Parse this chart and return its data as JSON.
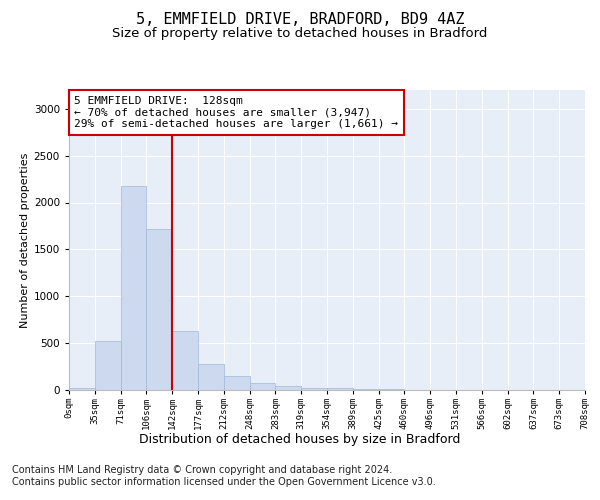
{
  "title1": "5, EMMFIELD DRIVE, BRADFORD, BD9 4AZ",
  "title2": "Size of property relative to detached houses in Bradford",
  "xlabel": "Distribution of detached houses by size in Bradford",
  "ylabel": "Number of detached properties",
  "footnote": "Contains HM Land Registry data © Crown copyright and database right 2024.\nContains public sector information licensed under the Open Government Licence v3.0.",
  "bin_labels": [
    "0sqm",
    "35sqm",
    "71sqm",
    "106sqm",
    "142sqm",
    "177sqm",
    "212sqm",
    "248sqm",
    "283sqm",
    "319sqm",
    "354sqm",
    "389sqm",
    "425sqm",
    "460sqm",
    "496sqm",
    "531sqm",
    "566sqm",
    "602sqm",
    "637sqm",
    "673sqm",
    "708sqm"
  ],
  "bar_values": [
    25,
    520,
    2180,
    1720,
    630,
    280,
    148,
    75,
    40,
    25,
    18,
    10,
    6,
    4,
    2,
    2,
    1,
    1,
    0,
    0
  ],
  "bar_color": "#cdd9ee",
  "bar_edge_color": "#a0b8d8",
  "vline_x": 4,
  "vline_color": "#cc0000",
  "ylim": [
    0,
    3200
  ],
  "yticks": [
    0,
    500,
    1000,
    1500,
    2000,
    2500,
    3000
  ],
  "annotation_text": "5 EMMFIELD DRIVE:  128sqm\n← 70% of detached houses are smaller (3,947)\n29% of semi-detached houses are larger (1,661) →",
  "annotation_box_color": "#ffffff",
  "annotation_box_edge": "#cc0000",
  "title1_fontsize": 11,
  "title2_fontsize": 9.5,
  "xlabel_fontsize": 9,
  "ylabel_fontsize": 8,
  "annotation_fontsize": 8,
  "footnote_fontsize": 7
}
